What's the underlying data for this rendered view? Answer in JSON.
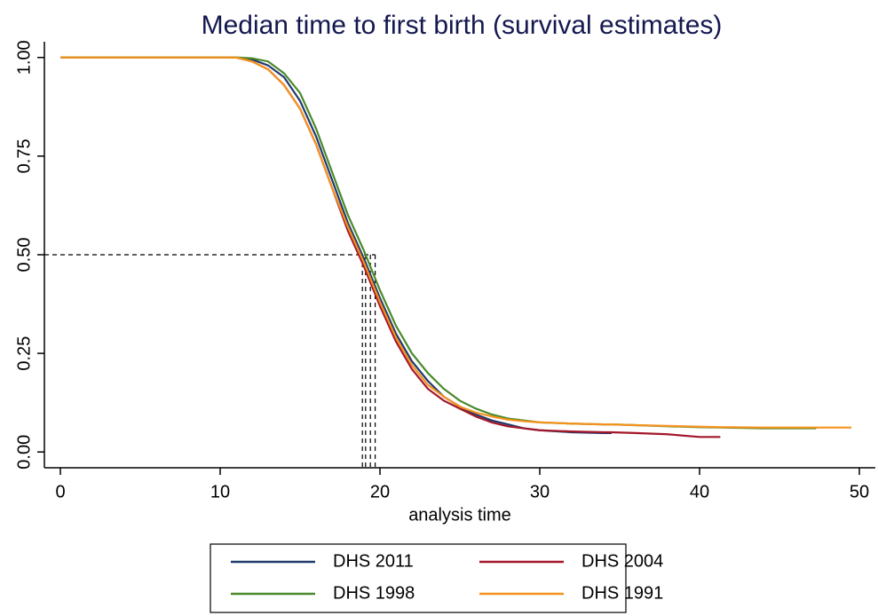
{
  "chart_data": {
    "type": "line",
    "title": "Median time to first birth (survival estimates)",
    "x_label": "analysis time",
    "x": [
      0,
      10,
      11,
      12,
      13,
      14,
      15,
      16,
      17,
      18,
      19,
      20,
      21,
      22,
      23,
      24,
      25,
      26,
      27,
      28,
      29,
      30,
      32,
      34,
      34.5,
      36,
      38,
      40,
      41.3,
      44,
      47.3,
      49.5
    ],
    "series": [
      {
        "name": "DHS 2011",
        "color": "#1f3a6e",
        "values": [
          1,
          1,
          1,
          0.995,
          0.98,
          0.95,
          0.89,
          0.8,
          0.69,
          0.58,
          0.49,
          0.39,
          0.3,
          0.23,
          0.18,
          0.14,
          0.115,
          0.095,
          0.08,
          0.07,
          0.06,
          0.055,
          0.05,
          0.048,
          0.048,
          null,
          null,
          null,
          null,
          null,
          null,
          null
        ]
      },
      {
        "name": "DHS 2004",
        "color": "#a3172a",
        "values": [
          1,
          1,
          1,
          0.99,
          0.97,
          0.93,
          0.87,
          0.78,
          0.67,
          0.56,
          0.47,
          0.37,
          0.28,
          0.21,
          0.16,
          0.13,
          0.11,
          0.09,
          0.075,
          0.065,
          0.06,
          0.055,
          0.052,
          0.05,
          0.05,
          0.048,
          0.045,
          0.038,
          0.038,
          null,
          null,
          null
        ]
      },
      {
        "name": "DHS 1998",
        "color": "#4a8a2a",
        "values": [
          1,
          1,
          1,
          0.998,
          0.99,
          0.96,
          0.91,
          0.82,
          0.71,
          0.6,
          0.51,
          0.41,
          0.32,
          0.25,
          0.2,
          0.16,
          0.13,
          0.11,
          0.095,
          0.085,
          0.08,
          0.075,
          0.072,
          0.07,
          0.07,
          0.068,
          0.065,
          0.063,
          0.062,
          0.06,
          0.06,
          null
        ]
      },
      {
        "name": "DHS 1991",
        "color": "#f5921e",
        "values": [
          1,
          1,
          1,
          0.99,
          0.97,
          0.93,
          0.87,
          0.78,
          0.67,
          0.57,
          0.48,
          0.38,
          0.29,
          0.22,
          0.17,
          0.14,
          0.115,
          0.1,
          0.09,
          0.082,
          0.078,
          0.075,
          0.072,
          0.07,
          0.07,
          0.068,
          0.066,
          0.064,
          0.063,
          0.062,
          0.062,
          0.062
        ]
      }
    ],
    "reference_lines": {
      "y": 0.5,
      "x": [
        18.9,
        19.1,
        19.4,
        19.7
      ]
    },
    "xlim": [
      -1,
      51
    ],
    "xticks": [
      0,
      10,
      20,
      30,
      40,
      50
    ],
    "ylim": [
      -0.04,
      1.04
    ],
    "yticks": [
      {
        "value": 0,
        "label": "0.00"
      },
      {
        "value": 0.25,
        "label": "0.25"
      },
      {
        "value": 0.5,
        "label": "0.50"
      },
      {
        "value": 0.75,
        "label": "0.75"
      },
      {
        "value": 1,
        "label": "1.00"
      }
    ],
    "grid": false,
    "legend": "bottom"
  }
}
